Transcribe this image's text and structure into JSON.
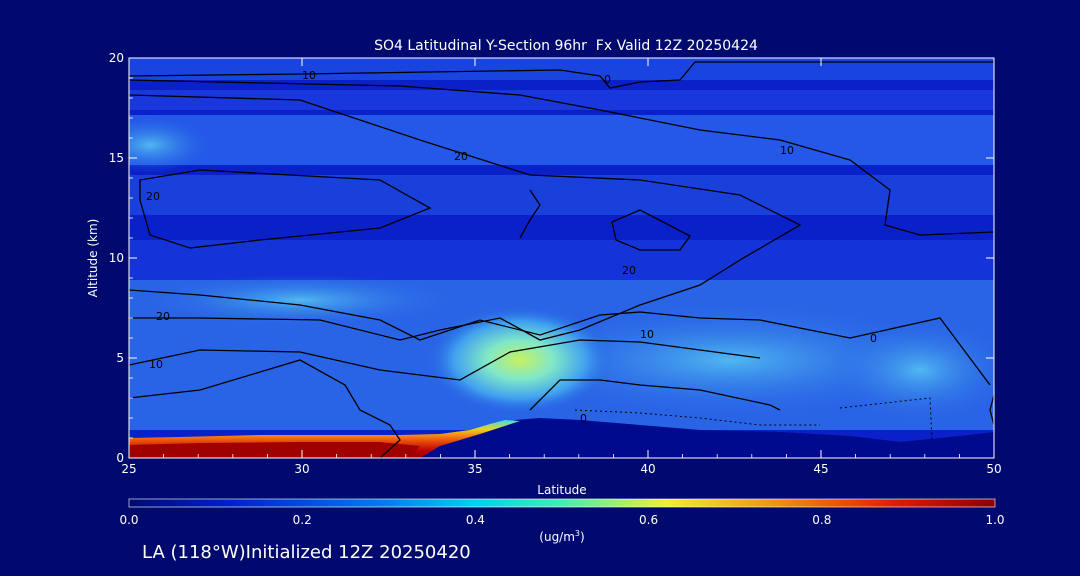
{
  "chart_data": {
    "type": "heatmap",
    "title": "SO4 Latitudinal Y-Section 96hr  Fx Valid 12Z 20250424",
    "xlabel": "Latitude",
    "ylabel": "Altitude (km)",
    "xlim": [
      25,
      50
    ],
    "ylim": [
      0,
      20
    ],
    "x_ticks": [
      "25",
      "30",
      "35",
      "40",
      "45",
      "50"
    ],
    "y_ticks": [
      "0",
      "5",
      "10",
      "15",
      "20"
    ],
    "colorbar": {
      "label": "(ug/m",
      "label_sup": "3",
      "label_end": ")",
      "range": [
        0.0,
        1.0
      ],
      "ticks": [
        "0.0",
        "0.2",
        "0.4",
        "0.6",
        "0.8",
        "1.0"
      ]
    },
    "contour_labels": [
      "10",
      "20",
      "10",
      "20",
      "20",
      "10",
      "10",
      "0",
      "0",
      "0",
      "20"
    ],
    "grid": false
  },
  "colors": {
    "background": "#000a6e",
    "low": "#0a20c8",
    "high": "#8a0000"
  },
  "footer": {
    "text": "LA (118°W)Initialized 12Z 20250420"
  }
}
